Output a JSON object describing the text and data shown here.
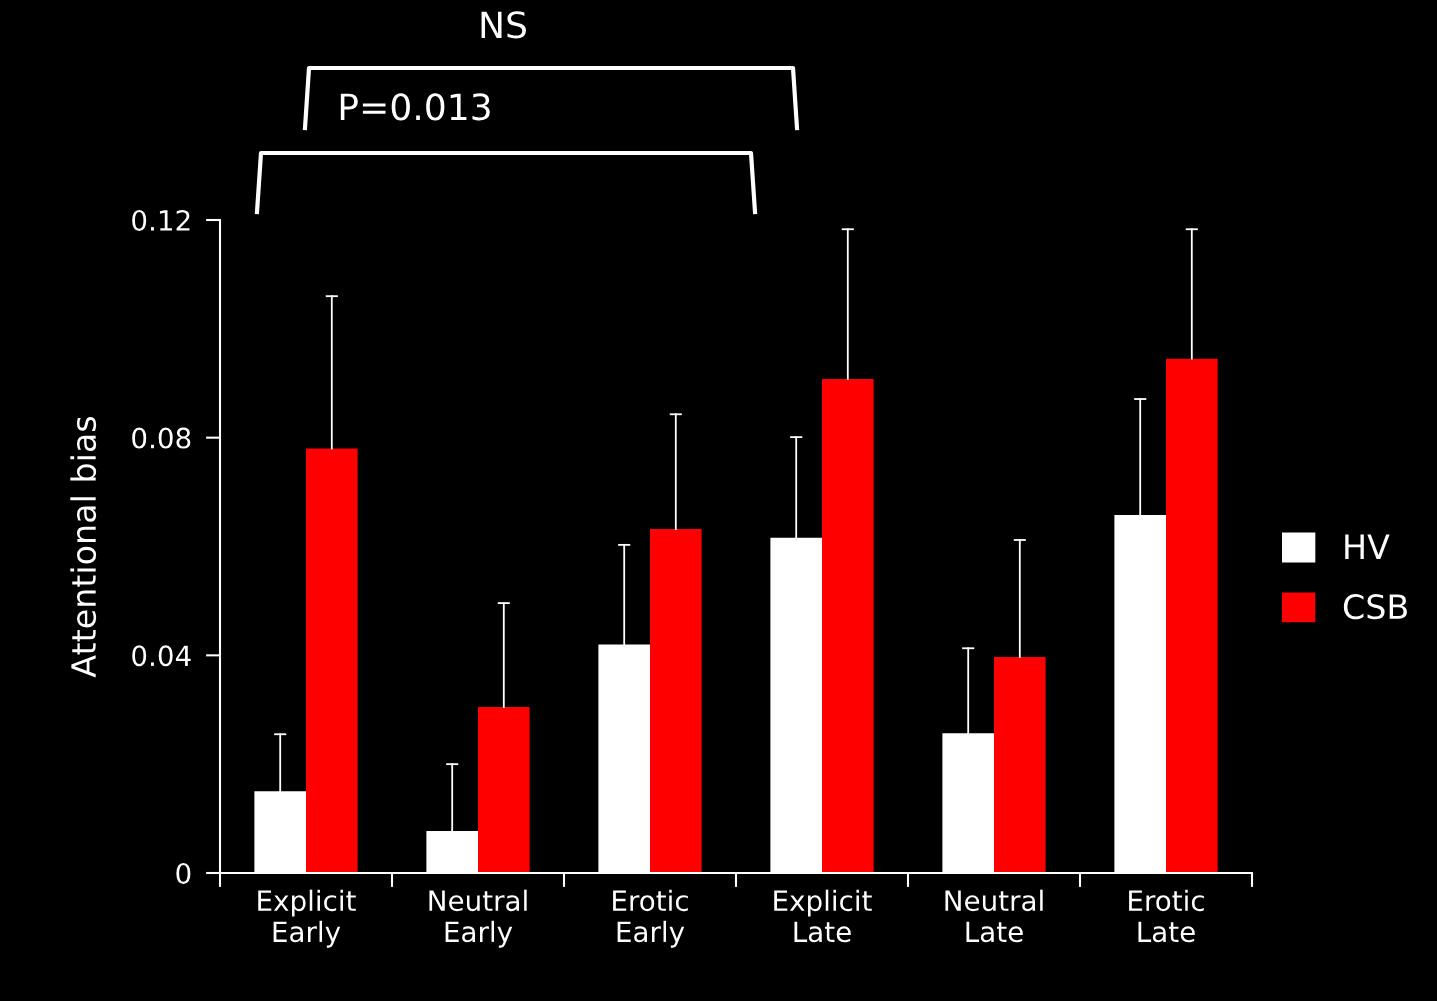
{
  "chart_data": {
    "type": "bar",
    "categories": [
      "Explicit\nEarly",
      "Neutral\nEarly",
      "Erotic\nEarly",
      "Explicit\nLate",
      "Neutral\nLate",
      "Erotic\nLate"
    ],
    "series": [
      {
        "name": "HV",
        "color": "#ffffff",
        "values": [
          0.015,
          0.0077,
          0.042,
          0.0616,
          0.0257,
          0.0658
        ],
        "errors": [
          [
            0.015,
            0.0255
          ],
          [
            0.0077,
            0.02
          ],
          [
            0.042,
            0.0603
          ],
          [
            0.0616,
            0.0801
          ],
          [
            0.0257,
            0.0413
          ],
          [
            0.0658,
            0.0871
          ]
        ]
      },
      {
        "name": "CSB",
        "color": "#ff0000",
        "values": [
          0.078,
          0.0305,
          0.0632,
          0.0908,
          0.0397,
          0.0945
        ],
        "errors": [
          [
            0.078,
            0.106
          ],
          [
            0.0305,
            0.0496
          ],
          [
            0.0632,
            0.0843
          ],
          [
            0.0908,
            0.1183
          ],
          [
            0.0397,
            0.0612
          ],
          [
            0.0945,
            0.1183
          ]
        ]
      }
    ],
    "ylabel": "Attentional bias",
    "ylim": [
      0,
      0.12
    ],
    "yticks": [
      0,
      0.04,
      0.08,
      0.12
    ],
    "annotations": [
      "P=0.013",
      "NS"
    ],
    "legend": "right",
    "grid": false
  }
}
